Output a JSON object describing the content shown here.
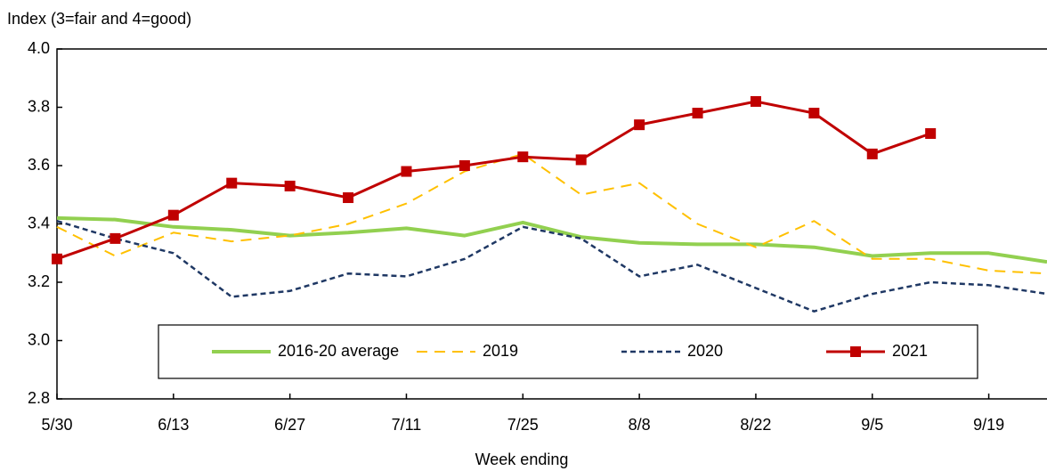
{
  "chart_data": {
    "type": "line",
    "ylabel": "Index (3=fair and 4=good)",
    "xlabel": "Week ending",
    "categories": [
      "5/30",
      null,
      "6/13",
      null,
      "6/27",
      null,
      "7/11",
      null,
      "7/25",
      null,
      "8/8",
      null,
      "8/22",
      null,
      "9/5",
      null,
      "9/19",
      null
    ],
    "series": [
      {
        "name": "2016-20 average",
        "color": "#92d050",
        "style": "solid",
        "width": 4,
        "values": [
          3.42,
          3.415,
          3.39,
          3.38,
          3.36,
          3.37,
          3.385,
          3.36,
          3.405,
          3.355,
          3.335,
          3.33,
          3.33,
          3.32,
          3.29,
          3.3,
          3.3,
          3.27
        ]
      },
      {
        "name": "2019",
        "color": "#ffc000",
        "style": "dashed",
        "width": 2,
        "values": [
          3.39,
          3.29,
          3.37,
          3.34,
          3.36,
          3.4,
          3.47,
          3.58,
          3.64,
          3.5,
          3.54,
          3.4,
          3.32,
          3.41,
          3.28,
          3.28,
          3.24,
          3.23
        ]
      },
      {
        "name": "2020",
        "color": "#1f3864",
        "style": "dotted",
        "width": 2.5,
        "values": [
          3.41,
          3.35,
          3.3,
          3.15,
          3.17,
          3.23,
          3.22,
          3.28,
          3.39,
          3.35,
          3.22,
          3.26,
          3.18,
          3.1,
          3.16,
          3.2,
          3.19,
          3.16
        ]
      },
      {
        "name": "2021",
        "color": "#c00000",
        "style": "solid",
        "width": 3,
        "marker": "square",
        "values": [
          3.28,
          3.35,
          3.43,
          3.54,
          3.53,
          3.49,
          3.58,
          3.6,
          3.63,
          3.62,
          3.74,
          3.78,
          3.82,
          3.78,
          3.64,
          3.71,
          null,
          null
        ]
      }
    ],
    "ylim": [
      2.8,
      4.0
    ],
    "yticks": [
      2.8,
      {
        "value": 3,
        "label": "3.0"
      },
      3.2,
      3.4,
      3.6,
      3.8,
      {
        "value": 4,
        "label": "4.0"
      }
    ],
    "grid": false,
    "legend": "bottom"
  }
}
